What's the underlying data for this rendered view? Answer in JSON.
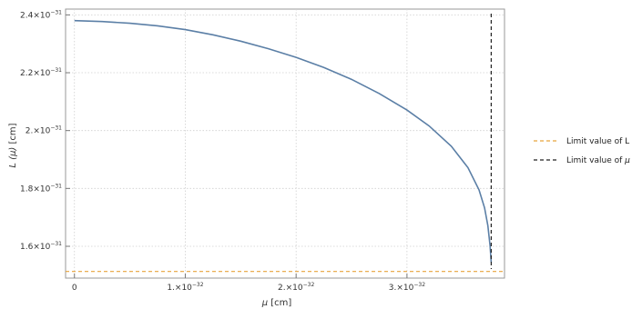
{
  "chart_data": {
    "type": "line",
    "xlabel_var": "μ",
    "xlabel_unit": "[cm]",
    "ylabel_var": "L (μ)",
    "ylabel_unit": "[cm]",
    "xlim": [
      -8e-34,
      3.88e-32
    ],
    "ylim": [
      1.49e-31,
      2.42e-31
    ],
    "x_ticks": [
      {
        "value": 0,
        "mantissa": "0",
        "exp": ""
      },
      {
        "value": 1e-32,
        "mantissa": "1.×10",
        "exp": "−32"
      },
      {
        "value": 2e-32,
        "mantissa": "2.×10",
        "exp": "−32"
      },
      {
        "value": 3e-32,
        "mantissa": "3.×10",
        "exp": "−32"
      }
    ],
    "y_ticks": [
      {
        "value": 1.6e-31,
        "mantissa": "1.6×10",
        "exp": "−31"
      },
      {
        "value": 1.8e-31,
        "mantissa": "1.8×10",
        "exp": "−31"
      },
      {
        "value": 2e-31,
        "mantissa": "2.×10",
        "exp": "−31"
      },
      {
        "value": 2.2e-31,
        "mantissa": "2.2×10",
        "exp": "−31"
      },
      {
        "value": 2.4e-31,
        "mantissa": "2.4×10",
        "exp": "−31"
      }
    ],
    "grid": true,
    "series": [
      {
        "color": "#5b7fa6",
        "style": "solid",
        "x": [
          0,
          2.5e-33,
          5e-33,
          7.5e-33,
          1e-32,
          1.25e-32,
          1.5e-32,
          1.75e-32,
          2e-32,
          2.25e-32,
          2.5e-32,
          2.75e-32,
          3e-32,
          3.2e-32,
          3.4e-32,
          3.55e-32,
          3.65e-32,
          3.7e-32,
          3.73e-32,
          3.75e-32,
          3.76e-32
        ],
        "y": [
          2.38e-31,
          2.377e-31,
          2.371e-31,
          2.362e-31,
          2.349e-31,
          2.331e-31,
          2.309e-31,
          2.283e-31,
          2.253e-31,
          2.218e-31,
          2.177e-31,
          2.128e-31,
          2.071e-31,
          2.016e-31,
          1.946e-31,
          1.872e-31,
          1.795e-31,
          1.733e-31,
          1.671e-31,
          1.601e-31,
          1.545e-31
        ]
      },
      {
        "name": "Limit value of L",
        "color": "#e8a33c",
        "style": "dashed",
        "y_const": 1.513e-31
      },
      {
        "name_prefix": "Limit value of",
        "name_symbol": "μ",
        "color": "#222222",
        "style": "dashed",
        "x_const": 3.76e-32
      }
    ],
    "legend_position": "right"
  }
}
